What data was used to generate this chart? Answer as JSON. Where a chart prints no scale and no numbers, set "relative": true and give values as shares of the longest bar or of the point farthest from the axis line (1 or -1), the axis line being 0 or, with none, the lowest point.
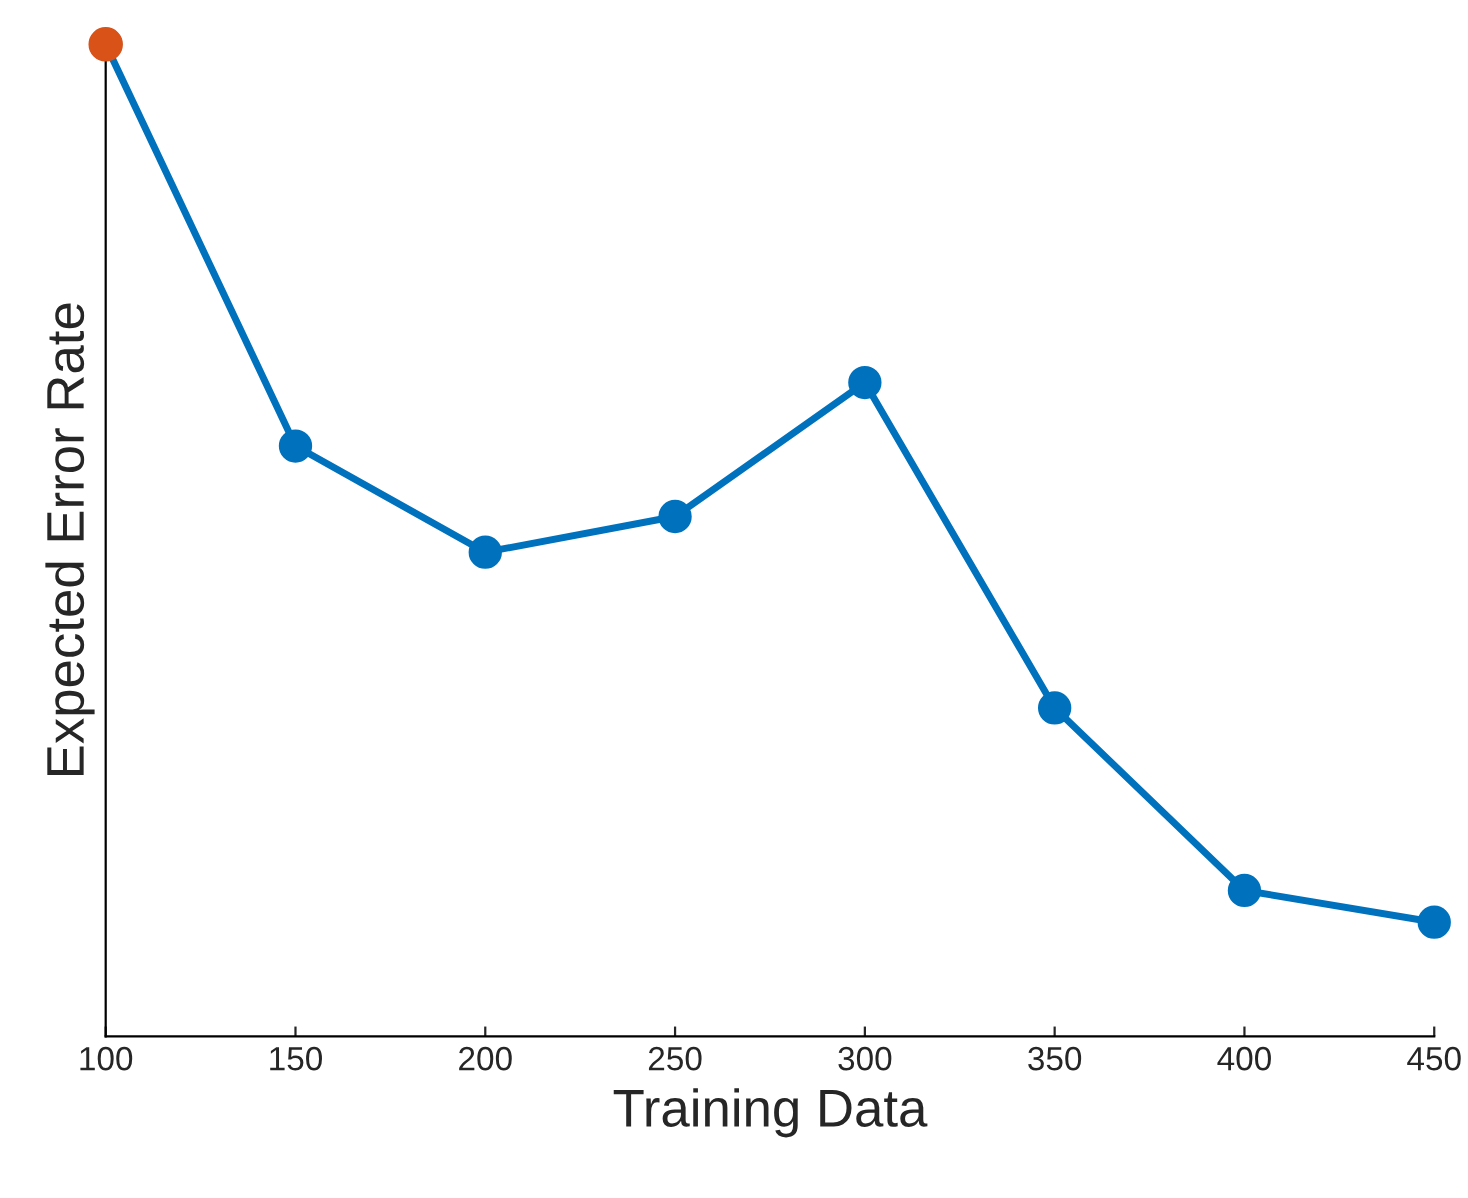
{
  "chart_data": {
    "type": "line",
    "xlabel": "Training Data",
    "ylabel": "Expected Error Rate",
    "x": [
      100,
      150,
      200,
      250,
      300,
      350,
      400,
      450
    ],
    "relative": true,
    "xlim": [
      100,
      450
    ],
    "xticks": [
      100,
      150,
      200,
      250,
      300,
      350,
      400,
      450
    ],
    "marker": "circle",
    "line_style": "solid",
    "grid": false,
    "legend": false,
    "series": [
      {
        "color": "#0072bd",
        "values": [
          1,
          0.595,
          0.488,
          0.524,
          0.659,
          0.331,
          0.147,
          0.115
        ]
      },
      {
        "type": "scatter",
        "color": "#d95319",
        "x": [
          100
        ],
        "values": [
          1
        ]
      }
    ]
  }
}
